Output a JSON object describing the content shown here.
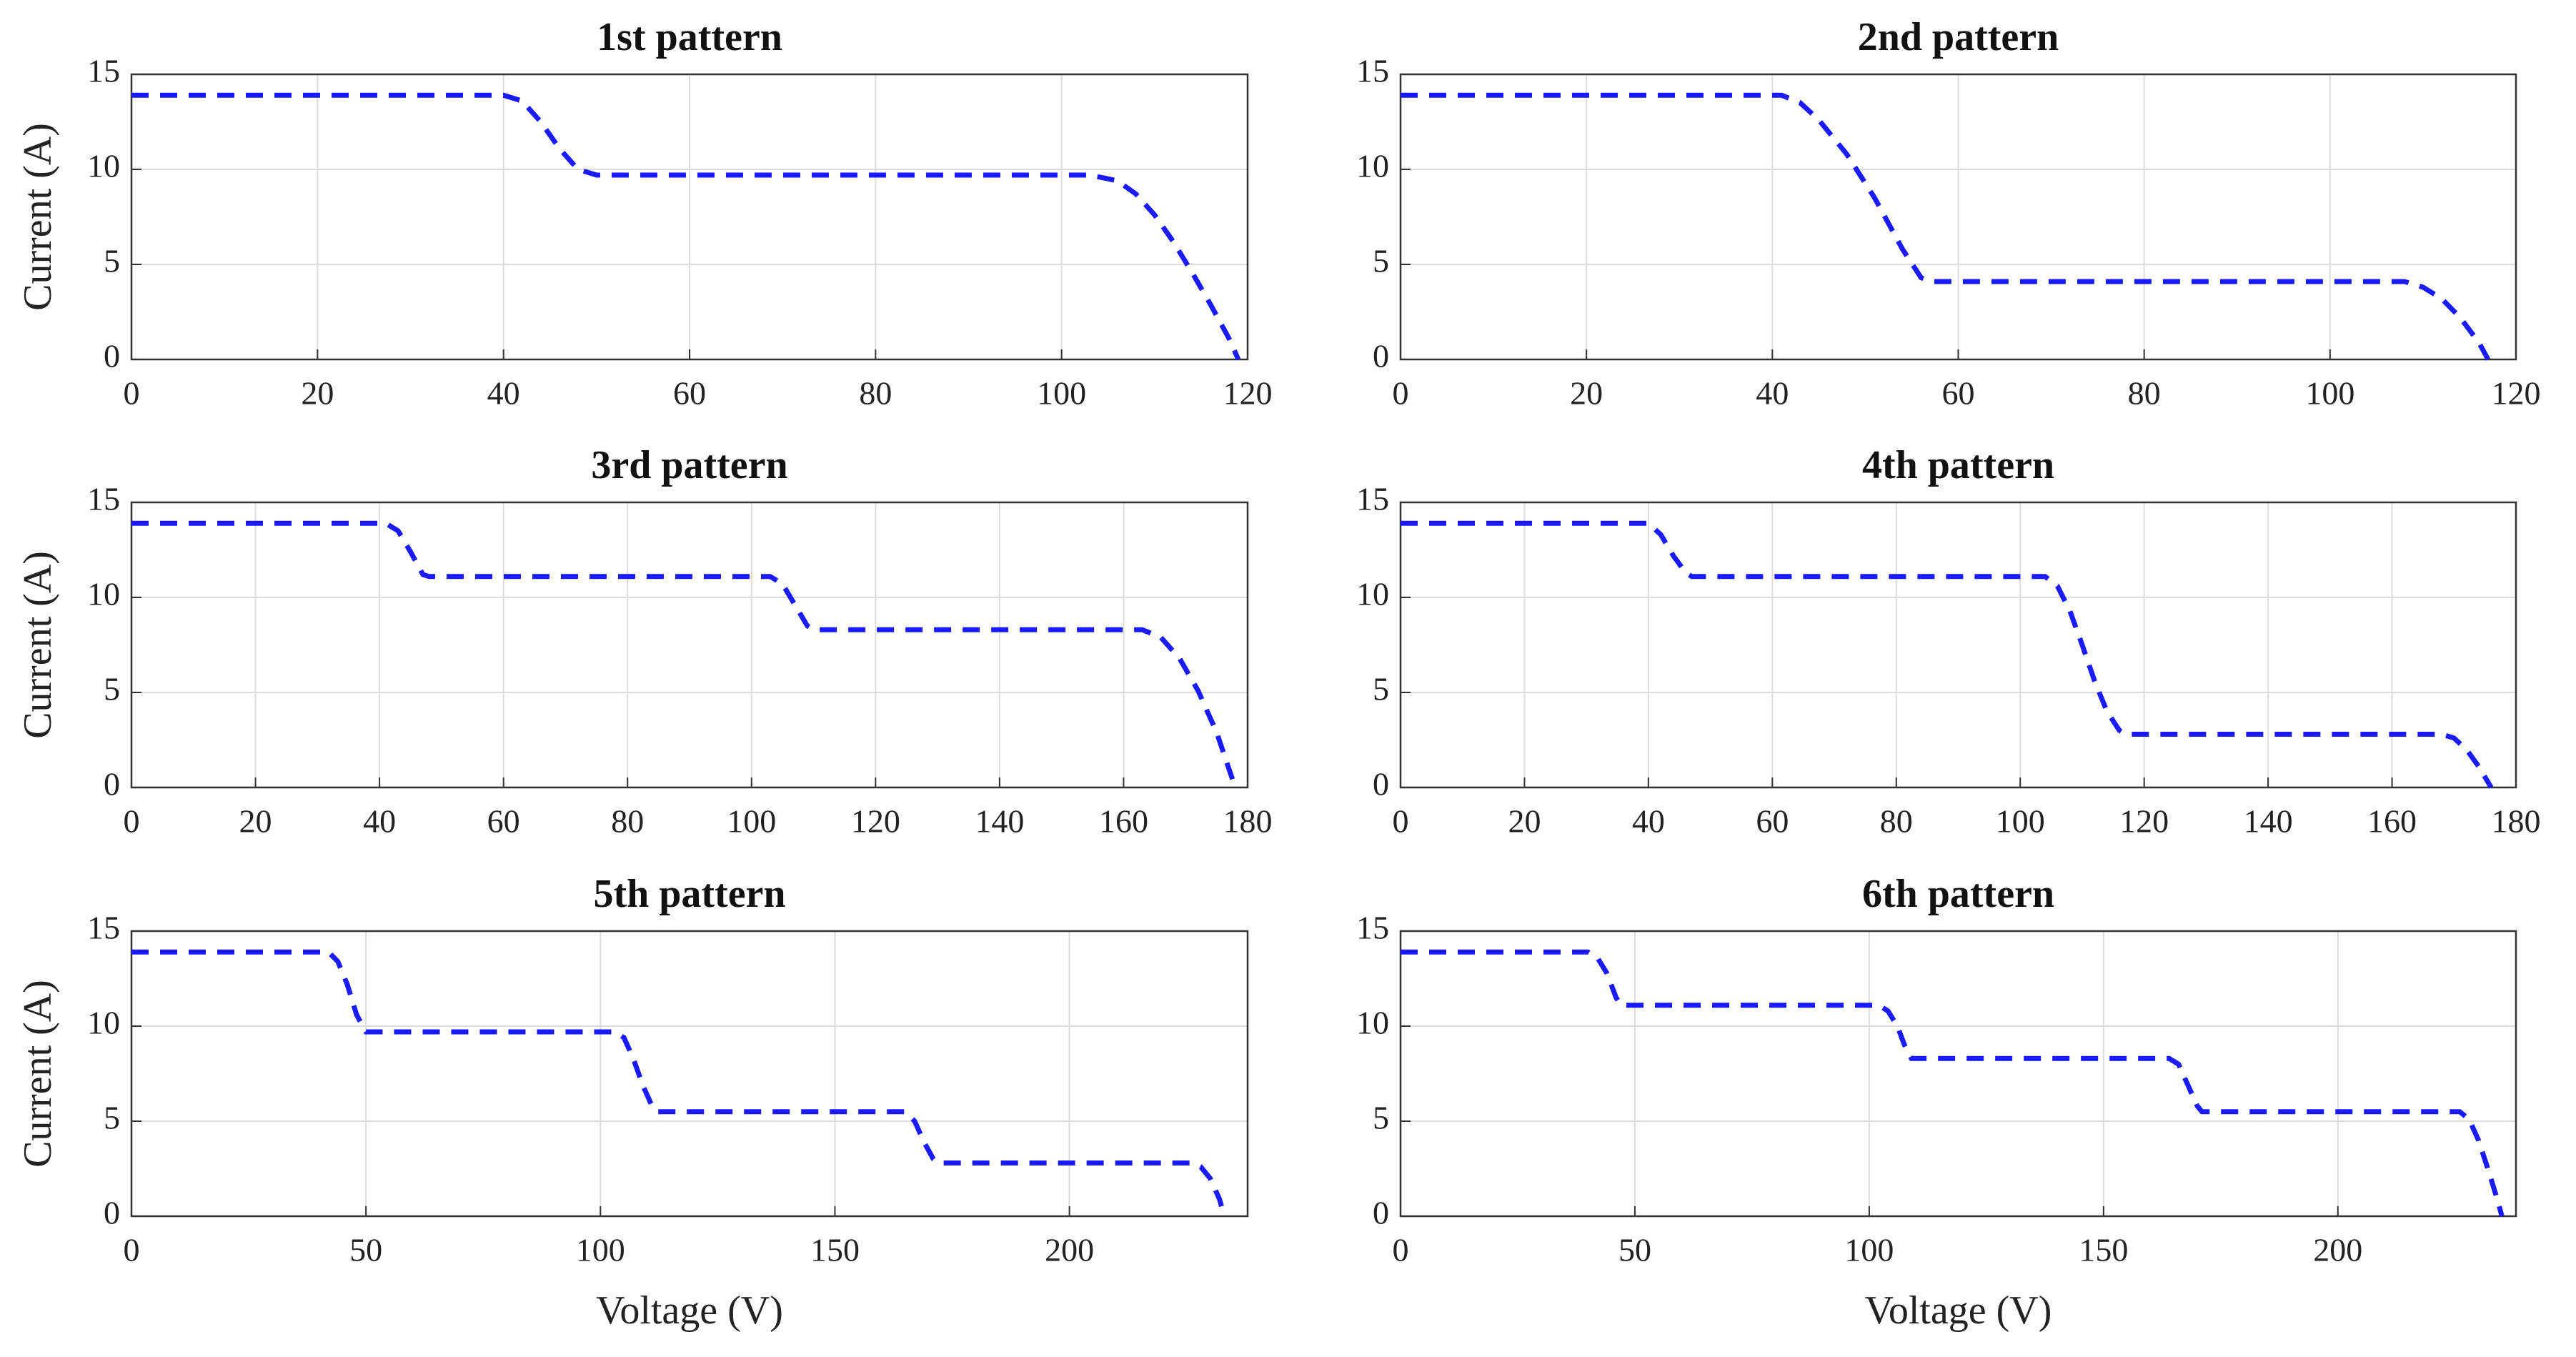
{
  "chart_data": [
    {
      "type": "line",
      "title": "1st pattern",
      "ylabel": "Current (A)",
      "x": [
        0,
        40,
        42,
        44,
        46,
        48,
        50,
        103,
        106,
        108,
        110,
        112,
        114,
        116,
        118,
        119
      ],
      "values": [
        13.9,
        13.9,
        13.6,
        12.5,
        11.1,
        10.0,
        9.7,
        9.7,
        9.4,
        8.7,
        7.6,
        6.2,
        4.6,
        2.9,
        1.1,
        0
      ],
      "color": "#1a1aff",
      "xlim": [
        0,
        120
      ],
      "xticks": [
        0,
        20,
        40,
        60,
        80,
        100,
        120
      ],
      "ylim": [
        0,
        15
      ],
      "yticks": [
        0,
        5,
        10,
        15
      ],
      "grid": true
    },
    {
      "type": "line",
      "title": "2nd pattern",
      "x": [
        0,
        41,
        43,
        45,
        48,
        51,
        54,
        56,
        57,
        108,
        110,
        112,
        114,
        116,
        117
      ],
      "values": [
        13.9,
        13.9,
        13.5,
        12.6,
        10.8,
        8.5,
        5.8,
        4.3,
        4.1,
        4.1,
        3.8,
        3.2,
        2.2,
        0.9,
        0
      ],
      "color": "#1a1aff",
      "xlim": [
        0,
        120
      ],
      "xticks": [
        0,
        20,
        40,
        60,
        80,
        100,
        120
      ],
      "ylim": [
        0,
        15
      ],
      "yticks": [
        0,
        5,
        10,
        15
      ],
      "grid": true
    },
    {
      "type": "line",
      "title": "3rd pattern",
      "ylabel": "Current (A)",
      "x": [
        0,
        41,
        43,
        45,
        47,
        48,
        103,
        105,
        107,
        109,
        110,
        163,
        166,
        169,
        172,
        175,
        178
      ],
      "values": [
        13.9,
        13.9,
        13.5,
        12.4,
        11.2,
        11.1,
        11.1,
        10.7,
        9.6,
        8.5,
        8.3,
        8.3,
        7.9,
        6.8,
        5.1,
        2.9,
        0
      ],
      "color": "#1a1aff",
      "xlim": [
        0,
        180
      ],
      "xticks": [
        0,
        20,
        40,
        60,
        80,
        100,
        120,
        140,
        160,
        180
      ],
      "ylim": [
        0,
        15
      ],
      "yticks": [
        0,
        5,
        10,
        15
      ],
      "grid": true
    },
    {
      "type": "line",
      "title": "4th pattern",
      "x": [
        0,
        40,
        42,
        44,
        46,
        47,
        104,
        106,
        108,
        110,
        112,
        114,
        116,
        117,
        168,
        170,
        172,
        174,
        176
      ],
      "values": [
        13.9,
        13.9,
        13.3,
        12.2,
        11.3,
        11.1,
        11.1,
        10.6,
        9.3,
        7.5,
        5.6,
        4.0,
        3.0,
        2.8,
        2.8,
        2.6,
        2.0,
        1.1,
        0
      ],
      "color": "#1a1aff",
      "xlim": [
        0,
        180
      ],
      "xticks": [
        0,
        20,
        40,
        60,
        80,
        100,
        120,
        140,
        160,
        180
      ],
      "ylim": [
        0,
        15
      ],
      "yticks": [
        0,
        5,
        10,
        15
      ],
      "grid": true
    },
    {
      "type": "line",
      "title": "5th pattern",
      "ylabel": "Current (A)",
      "xlabel": "Voltage (V)",
      "x": [
        0,
        42,
        44,
        46,
        48,
        50,
        103,
        105,
        107,
        109,
        111,
        112,
        165,
        167,
        169,
        171,
        172,
        226,
        228,
        230,
        232,
        233
      ],
      "values": [
        13.9,
        13.9,
        13.4,
        12.2,
        10.6,
        9.7,
        9.7,
        9.4,
        8.3,
        6.9,
        5.8,
        5.5,
        5.5,
        5.0,
        3.9,
        3.0,
        2.8,
        2.8,
        2.6,
        2.0,
        0.9,
        0
      ],
      "color": "#1a1aff",
      "xlim": [
        0,
        238
      ],
      "xticks": [
        0,
        50,
        100,
        150,
        200
      ],
      "ylim": [
        0,
        15
      ],
      "yticks": [
        0,
        5,
        10,
        15
      ],
      "grid": true
    },
    {
      "type": "line",
      "title": "6th pattern",
      "xlabel": "Voltage (V)",
      "x": [
        0,
        40,
        42,
        44,
        46,
        47,
        102,
        104,
        106,
        108,
        109,
        164,
        166,
        168,
        170,
        171,
        226,
        228,
        230,
        232,
        234,
        235
      ],
      "values": [
        13.9,
        13.9,
        13.6,
        12.8,
        11.5,
        11.1,
        11.1,
        10.8,
        10.0,
        8.7,
        8.3,
        8.3,
        8.0,
        6.9,
        5.8,
        5.5,
        5.5,
        5.1,
        4.0,
        2.5,
        0.9,
        0
      ],
      "color": "#1a1aff",
      "xlim": [
        0,
        238
      ],
      "xticks": [
        0,
        50,
        100,
        150,
        200
      ],
      "ylim": [
        0,
        15
      ],
      "yticks": [
        0,
        5,
        10,
        15
      ],
      "grid": true
    }
  ]
}
